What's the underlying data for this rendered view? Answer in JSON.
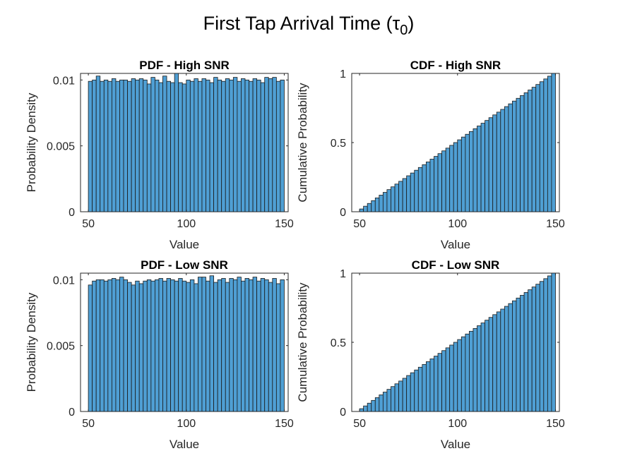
{
  "figure": {
    "title_main": "First Tap Arrival Time (τ",
    "title_sub": "0",
    "title_close": ")",
    "bar_color": "#4f9fd4"
  },
  "chart_data": [
    {
      "type": "bar",
      "title": "PDF - High SNR",
      "xlabel": "Value",
      "ylabel": "Probability Density",
      "xlim": [
        46,
        152
      ],
      "ylim": [
        0,
        0.0105
      ],
      "xticks": [
        50,
        100,
        150
      ],
      "xtick_labels": [
        "50",
        "100",
        "150"
      ],
      "yticks": [
        0,
        0.005,
        0.01
      ],
      "ytick_labels": [
        "0",
        "0.005",
        "0.01"
      ],
      "bin_start": 50,
      "bin_width": 2,
      "values": [
        0.0099,
        0.01,
        0.0103,
        0.0099,
        0.01,
        0.0099,
        0.0101,
        0.0099,
        0.01,
        0.01,
        0.0099,
        0.0101,
        0.01,
        0.0101,
        0.01,
        0.0097,
        0.0102,
        0.01,
        0.0098,
        0.0103,
        0.0099,
        0.0098,
        0.0105,
        0.0098,
        0.0097,
        0.01,
        0.0099,
        0.0101,
        0.0099,
        0.0101,
        0.01,
        0.0098,
        0.0102,
        0.01,
        0.0099,
        0.0101,
        0.01,
        0.0102,
        0.0099,
        0.0101,
        0.01,
        0.0099,
        0.0101,
        0.01,
        0.0098,
        0.0102,
        0.0101,
        0.0102,
        0.0099,
        0.01
      ]
    },
    {
      "type": "bar",
      "title": "CDF - High SNR",
      "xlabel": "Value",
      "ylabel": "Cumulative Probability",
      "xlim": [
        46,
        152
      ],
      "ylim": [
        0,
        1
      ],
      "xticks": [
        50,
        100,
        150
      ],
      "xtick_labels": [
        "50",
        "100",
        "150"
      ],
      "yticks": [
        0,
        0.5,
        1
      ],
      "ytick_labels": [
        "0",
        "0.5",
        "1"
      ],
      "bin_start": 50,
      "bin_width": 2,
      "values": [
        0.02,
        0.04,
        0.06,
        0.08,
        0.1,
        0.12,
        0.14,
        0.16,
        0.18,
        0.2,
        0.22,
        0.24,
        0.26,
        0.28,
        0.3,
        0.32,
        0.34,
        0.36,
        0.38,
        0.4,
        0.42,
        0.44,
        0.46,
        0.48,
        0.5,
        0.52,
        0.54,
        0.56,
        0.58,
        0.6,
        0.62,
        0.64,
        0.66,
        0.68,
        0.7,
        0.72,
        0.74,
        0.76,
        0.78,
        0.8,
        0.82,
        0.84,
        0.86,
        0.88,
        0.9,
        0.92,
        0.94,
        0.96,
        0.98,
        1.0
      ]
    },
    {
      "type": "bar",
      "title": "PDF - Low SNR",
      "xlabel": "Value",
      "ylabel": "Probability Density",
      "xlim": [
        46,
        152
      ],
      "ylim": [
        0,
        0.0105
      ],
      "xticks": [
        50,
        100,
        150
      ],
      "xtick_labels": [
        "50",
        "100",
        "150"
      ],
      "yticks": [
        0,
        0.005,
        0.01
      ],
      "ytick_labels": [
        "0",
        "0.005",
        "0.01"
      ],
      "bin_start": 50,
      "bin_width": 2,
      "values": [
        0.0096,
        0.0099,
        0.01,
        0.01,
        0.0099,
        0.01,
        0.0101,
        0.01,
        0.0102,
        0.01,
        0.0098,
        0.0096,
        0.0099,
        0.0097,
        0.0099,
        0.01,
        0.0099,
        0.01,
        0.0101,
        0.0099,
        0.0101,
        0.01,
        0.0099,
        0.0101,
        0.0099,
        0.0098,
        0.01,
        0.0097,
        0.0102,
        0.0102,
        0.0099,
        0.0103,
        0.0098,
        0.01,
        0.0101,
        0.0098,
        0.0101,
        0.01,
        0.0102,
        0.0099,
        0.0101,
        0.01,
        0.0102,
        0.0099,
        0.0101,
        0.01,
        0.0098,
        0.0101,
        0.0097,
        0.01
      ]
    },
    {
      "type": "bar",
      "title": "CDF - Low SNR",
      "xlabel": "Value",
      "ylabel": "Cumulative Probability",
      "xlim": [
        46,
        152
      ],
      "ylim": [
        0,
        1
      ],
      "xticks": [
        50,
        100,
        150
      ],
      "xtick_labels": [
        "50",
        "100",
        "150"
      ],
      "yticks": [
        0,
        0.5,
        1
      ],
      "ytick_labels": [
        "0",
        "0.5",
        "1"
      ],
      "bin_start": 50,
      "bin_width": 2,
      "values": [
        0.02,
        0.04,
        0.06,
        0.08,
        0.1,
        0.12,
        0.14,
        0.16,
        0.18,
        0.2,
        0.22,
        0.24,
        0.26,
        0.28,
        0.3,
        0.32,
        0.34,
        0.36,
        0.38,
        0.4,
        0.42,
        0.44,
        0.46,
        0.48,
        0.5,
        0.52,
        0.54,
        0.56,
        0.58,
        0.6,
        0.62,
        0.64,
        0.66,
        0.68,
        0.7,
        0.72,
        0.74,
        0.76,
        0.78,
        0.8,
        0.82,
        0.84,
        0.86,
        0.88,
        0.9,
        0.92,
        0.94,
        0.96,
        0.98,
        1.0
      ]
    }
  ]
}
